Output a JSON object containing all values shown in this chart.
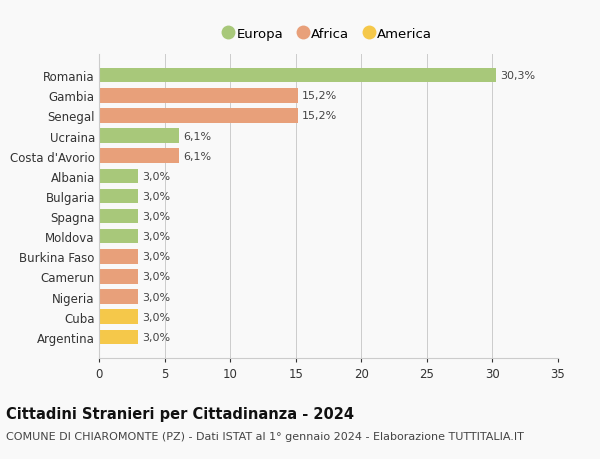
{
  "countries": [
    "Romania",
    "Gambia",
    "Senegal",
    "Ucraina",
    "Costa d'Avorio",
    "Albania",
    "Bulgaria",
    "Spagna",
    "Moldova",
    "Burkina Faso",
    "Camerun",
    "Nigeria",
    "Cuba",
    "Argentina"
  ],
  "values": [
    30.3,
    15.2,
    15.2,
    6.1,
    6.1,
    3.0,
    3.0,
    3.0,
    3.0,
    3.0,
    3.0,
    3.0,
    3.0,
    3.0
  ],
  "labels": [
    "30,3%",
    "15,2%",
    "15,2%",
    "6,1%",
    "6,1%",
    "3,0%",
    "3,0%",
    "3,0%",
    "3,0%",
    "3,0%",
    "3,0%",
    "3,0%",
    "3,0%",
    "3,0%"
  ],
  "colors": [
    "#a8c87a",
    "#e8a07a",
    "#e8a07a",
    "#a8c87a",
    "#e8a07a",
    "#a8c87a",
    "#a8c87a",
    "#a8c87a",
    "#a8c87a",
    "#e8a07a",
    "#e8a07a",
    "#e8a07a",
    "#f5c84a",
    "#f5c84a"
  ],
  "legend_labels": [
    "Europa",
    "Africa",
    "America"
  ],
  "legend_colors": [
    "#a8c87a",
    "#e8a07a",
    "#f5c84a"
  ],
  "title": "Cittadini Stranieri per Cittadinanza - 2024",
  "subtitle": "COMUNE DI CHIAROMONTE (PZ) - Dati ISTAT al 1° gennaio 2024 - Elaborazione TUTTITALIA.IT",
  "xlim": [
    0,
    35
  ],
  "xticks": [
    0,
    5,
    10,
    15,
    20,
    25,
    30,
    35
  ],
  "bg_color": "#f9f9f9",
  "grid_color": "#cccccc",
  "bar_height": 0.72,
  "title_fontsize": 10.5,
  "subtitle_fontsize": 8,
  "label_fontsize": 8,
  "tick_fontsize": 8.5,
  "legend_fontsize": 9.5
}
